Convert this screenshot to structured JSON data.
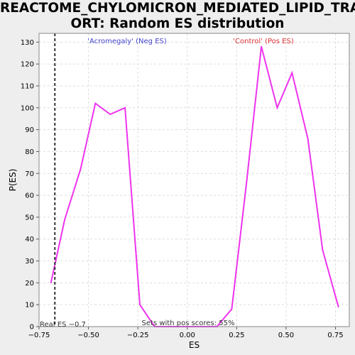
{
  "chart_data": {
    "type": "line",
    "title_line1": "REACTOME_CHYLOMICRON_MEDIATED_LIPID_TRANSP",
    "title_line2": "ORT: Random ES distribution",
    "xlabel": "ES",
    "ylabel": "P(ES)",
    "xlim": [
      -0.75,
      0.82
    ],
    "ylim": [
      0,
      134
    ],
    "xticks": [
      -0.75,
      -0.5,
      -0.25,
      0.0,
      0.25,
      0.5,
      0.75
    ],
    "xtick_labels": [
      "−0.75",
      "−0.50",
      "−0.25",
      "0.00",
      "0.25",
      "0.50",
      "0.75"
    ],
    "yticks": [
      0,
      10,
      20,
      30,
      40,
      50,
      60,
      70,
      80,
      90,
      100,
      110,
      120,
      130
    ],
    "grid": true,
    "series": [
      {
        "color": "#ee33ee",
        "x": [
          -0.69,
          -0.62,
          -0.54,
          -0.465,
          -0.39,
          -0.315,
          -0.24,
          -0.165,
          -0.09,
          -0.01,
          0.07,
          0.15,
          0.225,
          0.3,
          0.375,
          0.455,
          0.53,
          0.61,
          0.685,
          0.765
        ],
        "y": [
          20,
          49,
          72,
          102,
          97,
          100,
          10,
          0,
          0,
          0,
          0,
          0,
          8,
          66,
          128,
          100,
          116,
          86,
          35,
          9
        ]
      }
    ],
    "real_es_x": -0.67,
    "annotations": {
      "neg_label": "'Acromegaly' (Neg ES)",
      "pos_label": "'Control' (Pos ES)",
      "real_es": "Real ES −0.7",
      "pos_scores": "Sets with pos scores: 55%"
    },
    "colors": {
      "neg_label": "#4444cc",
      "pos_label": "#dd3333",
      "line": "#ee33ee"
    }
  }
}
